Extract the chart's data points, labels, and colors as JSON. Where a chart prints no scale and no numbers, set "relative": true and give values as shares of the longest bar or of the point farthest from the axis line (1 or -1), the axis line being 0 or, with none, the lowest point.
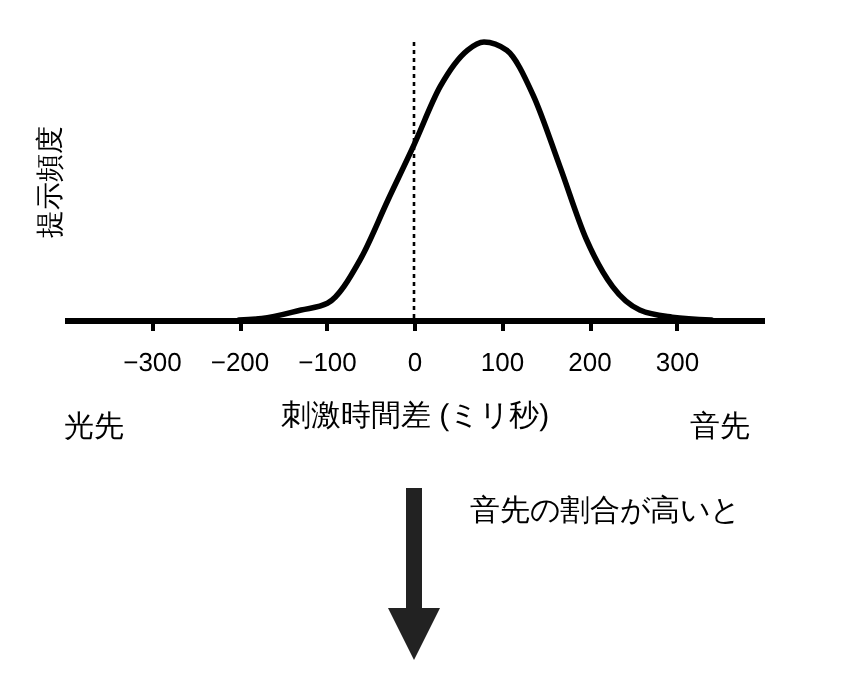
{
  "chart_data": {
    "type": "line",
    "relative": true,
    "xlabel": "刺激時間差 (ミリ秒)",
    "ylabel": "提示頻度",
    "x": [
      -200,
      -174,
      -129,
      -99,
      -61,
      -30,
      0,
      30,
      61,
      80,
      106,
      136,
      167,
      197,
      227,
      258,
      295,
      340
    ],
    "series": [
      {
        "color": "#000000",
        "values": [
          0,
          0.005,
          0.036,
          0.06,
          0.22,
          0.43,
          0.63,
          0.84,
          0.97,
          1,
          0.97,
          0.81,
          0.55,
          0.29,
          0.12,
          0.036,
          0.01,
          0
        ]
      }
    ],
    "xlim": [
      -400,
      400
    ],
    "xticks": [
      -300,
      -200,
      -100,
      0,
      100,
      200,
      300
    ],
    "ref_lines": [
      {
        "axis": "x",
        "value": 0,
        "line_style": "dotted"
      }
    ],
    "annotations": [
      "光先",
      "音先",
      "音先の割合が高いと"
    ]
  }
}
